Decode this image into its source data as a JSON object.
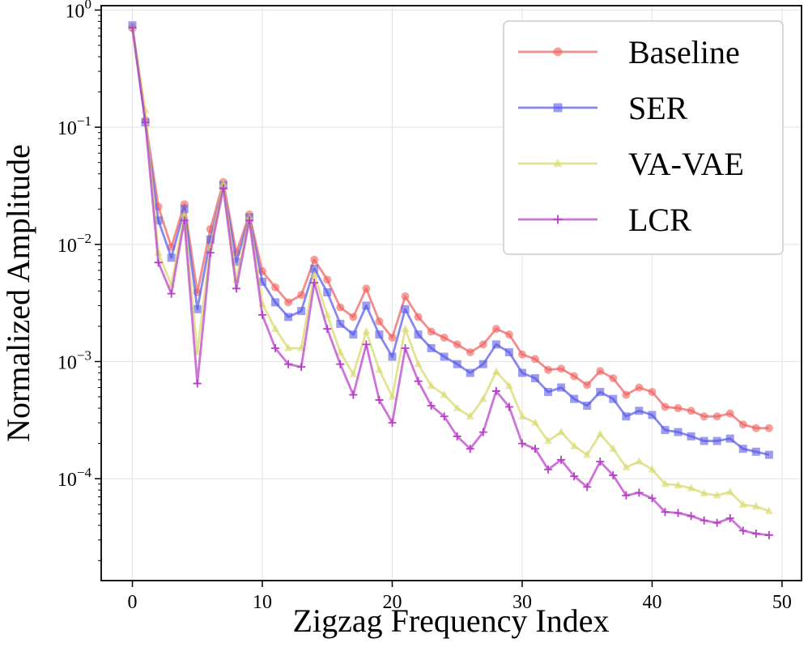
{
  "chart_data": {
    "type": "line",
    "xlabel": "Zigzag Frequency Index",
    "ylabel": "Normalized Amplitude",
    "yscale": "log",
    "xlim": [
      -2.4,
      51.5
    ],
    "ylim": [
      1.35e-05,
      1.09
    ],
    "xticks": [
      0,
      10,
      20,
      30,
      40,
      50
    ],
    "xtick_labels": [
      "0",
      "10",
      "20",
      "30",
      "40",
      "50"
    ],
    "yticks": [
      1,
      0.1,
      0.01,
      0.001,
      0.0001
    ],
    "ytick_labels": [
      {
        "base": "10",
        "exp": "0"
      },
      {
        "base": "10",
        "exp": "−1"
      },
      {
        "base": "10",
        "exp": "−2"
      },
      {
        "base": "10",
        "exp": "−3"
      },
      {
        "base": "10",
        "exp": "−4"
      }
    ],
    "grid": true,
    "legend_position": "top-right",
    "x": [
      0,
      1,
      2,
      3,
      4,
      5,
      6,
      7,
      8,
      9,
      10,
      11,
      12,
      13,
      14,
      15,
      16,
      17,
      18,
      19,
      20,
      21,
      22,
      23,
      24,
      25,
      26,
      27,
      28,
      29,
      30,
      31,
      32,
      33,
      34,
      35,
      36,
      37,
      38,
      39,
      40,
      41,
      42,
      43,
      44,
      45,
      46,
      47,
      48,
      49
    ],
    "series": [
      {
        "name": "Baseline",
        "color": "#f0605e",
        "marker": "circle",
        "values": [
          0.7,
          0.115,
          0.021,
          0.0095,
          0.022,
          0.0039,
          0.0135,
          0.034,
          0.0085,
          0.018,
          0.0059,
          0.0043,
          0.0032,
          0.0037,
          0.0074,
          0.005,
          0.0029,
          0.0024,
          0.0042,
          0.0022,
          0.0016,
          0.0036,
          0.0024,
          0.0018,
          0.0016,
          0.0014,
          0.0012,
          0.0014,
          0.0019,
          0.0017,
          0.00115,
          0.00105,
          0.00085,
          0.00087,
          0.00075,
          0.00063,
          0.00083,
          0.00072,
          0.00052,
          0.0006,
          0.00055,
          0.00041,
          0.0004,
          0.00038,
          0.00034,
          0.00034,
          0.00036,
          0.00029,
          0.00027,
          0.00027
        ]
      },
      {
        "name": "SER",
        "color": "#5a5ae8",
        "marker": "square",
        "values": [
          0.74,
          0.11,
          0.016,
          0.0077,
          0.02,
          0.0028,
          0.011,
          0.032,
          0.0071,
          0.017,
          0.0048,
          0.0032,
          0.0024,
          0.0027,
          0.0062,
          0.0039,
          0.0021,
          0.0017,
          0.003,
          0.0017,
          0.0011,
          0.0028,
          0.0017,
          0.0013,
          0.0011,
          0.00095,
          0.0008,
          0.00095,
          0.0014,
          0.0012,
          0.0008,
          0.00072,
          0.00055,
          0.0006,
          0.00048,
          0.00042,
          0.00055,
          0.00048,
          0.00034,
          0.00038,
          0.00035,
          0.00026,
          0.00025,
          0.00023,
          0.00021,
          0.00021,
          0.00022,
          0.00018,
          0.00017,
          0.00016
        ]
      },
      {
        "name": "VA-VAE",
        "color": "#d8d86a",
        "marker": "triangle",
        "values": [
          0.72,
          0.14,
          0.0085,
          0.0045,
          0.018,
          0.0012,
          0.0095,
          0.033,
          0.005,
          0.017,
          0.0031,
          0.0019,
          0.0013,
          0.0013,
          0.0055,
          0.0025,
          0.0012,
          0.00078,
          0.0018,
          0.00085,
          0.0005,
          0.0019,
          0.00095,
          0.00062,
          0.00052,
          0.0004,
          0.00034,
          0.00048,
          0.00082,
          0.00062,
          0.00034,
          0.0003,
          0.00021,
          0.00025,
          0.00019,
          0.00016,
          0.00024,
          0.00018,
          0.000125,
          0.00014,
          0.00012,
          9e-05,
          8.8e-05,
          8.3e-05,
          7.5e-05,
          7.2e-05,
          7.7e-05,
          6e-05,
          5.8e-05,
          5.3e-05
        ]
      },
      {
        "name": "LCR",
        "color": "#b83ec8",
        "marker": "plus",
        "values": [
          0.71,
          0.11,
          0.007,
          0.0038,
          0.016,
          0.00065,
          0.0085,
          0.03,
          0.0042,
          0.016,
          0.0025,
          0.0013,
          0.00095,
          0.0009,
          0.0047,
          0.0019,
          0.00095,
          0.00052,
          0.0014,
          0.00047,
          0.0003,
          0.0013,
          0.00068,
          0.00042,
          0.00034,
          0.00023,
          0.00018,
          0.00025,
          0.00056,
          0.00041,
          0.0002,
          0.00018,
          0.00012,
          0.000145,
          0.000105,
          8.5e-05,
          0.00014,
          0.000107,
          7.2e-05,
          7.6e-05,
          6.8e-05,
          5.2e-05,
          5.1e-05,
          4.8e-05,
          4.4e-05,
          4.2e-05,
          4.6e-05,
          3.6e-05,
          3.4e-05,
          3.3e-05
        ]
      }
    ]
  }
}
